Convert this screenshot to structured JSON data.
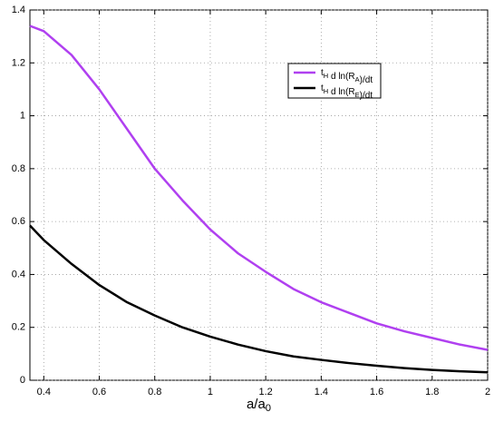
{
  "chart_data": {
    "type": "line",
    "x_label": "a/a_0",
    "x": [
      0.35,
      0.4,
      0.5,
      0.6,
      0.7,
      0.8,
      0.9,
      1.0,
      1.1,
      1.2,
      1.3,
      1.4,
      1.5,
      1.6,
      1.7,
      1.8,
      1.9,
      2.0
    ],
    "series": [
      {
        "name": "t_H d ln(R_A)/dt",
        "color": "#b040f0",
        "values": [
          1.34,
          1.32,
          1.23,
          1.1,
          0.95,
          0.8,
          0.68,
          0.57,
          0.48,
          0.41,
          0.345,
          0.295,
          0.255,
          0.215,
          0.185,
          0.16,
          0.135,
          0.115
        ]
      },
      {
        "name": "t_H d ln(R_E)/dt",
        "color": "#000000",
        "values": [
          0.585,
          0.53,
          0.44,
          0.36,
          0.295,
          0.245,
          0.2,
          0.165,
          0.135,
          0.11,
          0.09,
          0.077,
          0.065,
          0.055,
          0.046,
          0.039,
          0.034,
          0.03
        ]
      }
    ],
    "xlim": [
      0.35,
      2
    ],
    "ylim": [
      0,
      1.4
    ],
    "xticks": [
      0.4,
      0.6,
      0.8,
      1,
      1.2,
      1.4,
      1.6,
      1.8,
      2
    ],
    "yticks": [
      0,
      0.2,
      0.4,
      0.6,
      0.8,
      1,
      1.2,
      1.4
    ],
    "grid": true
  }
}
